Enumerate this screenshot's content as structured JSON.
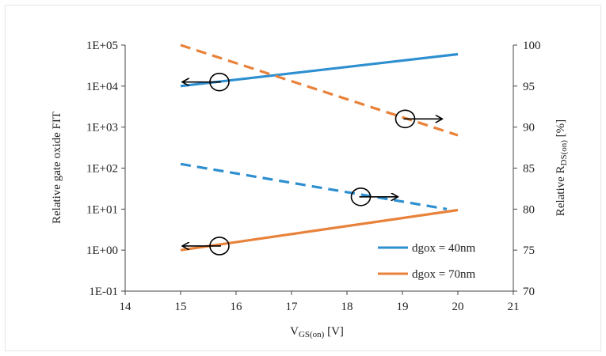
{
  "chart_data": {
    "type": "line",
    "x_label_main": "V",
    "x_label_sub": "GS(on)",
    "x_label_unit": " [V]",
    "y_left_label": "Relative gate oxide FIT",
    "y_right_label_main": "Relative R",
    "y_right_label_sub": "DS(on)",
    "y_right_label_unit": " [%]",
    "x_ticks": [
      "14",
      "15",
      "16",
      "17",
      "18",
      "19",
      "20",
      "21"
    ],
    "xlim": [
      14,
      21
    ],
    "y_left_ticks": [
      "1E-01",
      "1E+00",
      "1E+01",
      "1E+02",
      "1E+03",
      "1E+04",
      "1E+05"
    ],
    "y_left_scale": "log",
    "y_left_lim": [
      0.1,
      100000
    ],
    "y_right_ticks": [
      "70",
      "75",
      "80",
      "85",
      "90",
      "95",
      "100"
    ],
    "y_right_lim": [
      70,
      100
    ],
    "legend_position": "bottom-right",
    "series": [
      {
        "name": "dgox = 40nm",
        "axis": "left",
        "style": "solid",
        "color": "#2e8fd0",
        "x": [
          15,
          20
        ],
        "y": [
          10000,
          60000
        ]
      },
      {
        "name": "dgox = 70nm",
        "axis": "left",
        "style": "solid",
        "color": "#e8823a",
        "x": [
          15,
          20
        ],
        "y": [
          1,
          9.5
        ]
      },
      {
        "axis": "right",
        "style": "dashed",
        "color": "#e8823a",
        "x": [
          15,
          20
        ],
        "y": [
          100,
          89
        ]
      },
      {
        "axis": "right",
        "style": "dashed",
        "color": "#2e8fd0",
        "x": [
          15,
          19.8
        ],
        "y": [
          85.5,
          80
        ]
      }
    ],
    "annotations": [
      {
        "type": "circle-arrow",
        "direction": "left",
        "x": 15.7,
        "y": 95.5
      },
      {
        "type": "circle-arrow",
        "direction": "left",
        "x": 15.7,
        "y": 75.5
      },
      {
        "type": "circle-arrow",
        "direction": "right",
        "x": 19.05,
        "y": 91
      },
      {
        "type": "circle-arrow",
        "direction": "right",
        "x": 18.25,
        "y": 81.5
      }
    ]
  }
}
